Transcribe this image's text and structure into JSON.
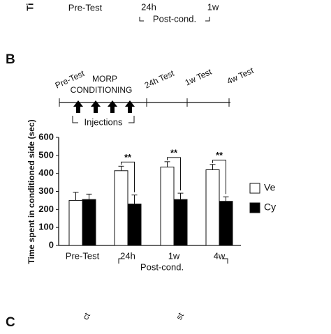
{
  "top_fragment": {
    "axis_label": "Ti",
    "categories": [
      "Pre-Test",
      "24h",
      "1w"
    ],
    "group_label": "Post-cond."
  },
  "panels": {
    "b": "B",
    "c": "C"
  },
  "bottom_fragment": [
    "ct",
    "st"
  ],
  "timeline": {
    "events": [
      "Pre-Test",
      "MORP",
      "CONDITIONING",
      "24h Test",
      "1w Test",
      "4w Test"
    ],
    "injections": "Injections"
  },
  "chart_data": {
    "type": "bar",
    "ylabel": "Time spent in conditioned side (sec)",
    "categories": [
      "Pre-Test",
      "24h",
      "1w",
      "4w"
    ],
    "group_label": "Post-cond.",
    "series": [
      {
        "name": "Ve",
        "color": "#ffffff",
        "values": [
          250,
          415,
          435,
          420
        ],
        "errors": [
          45,
          25,
          30,
          30
        ]
      },
      {
        "name": "Cy",
        "color": "#000000",
        "values": [
          255,
          230,
          255,
          245
        ],
        "errors": [
          30,
          50,
          35,
          25
        ]
      }
    ],
    "significance": [
      null,
      "**",
      "**",
      "**"
    ],
    "ylim": [
      0,
      600
    ],
    "yticks": [
      0,
      100,
      200,
      300,
      400,
      500,
      600
    ]
  }
}
